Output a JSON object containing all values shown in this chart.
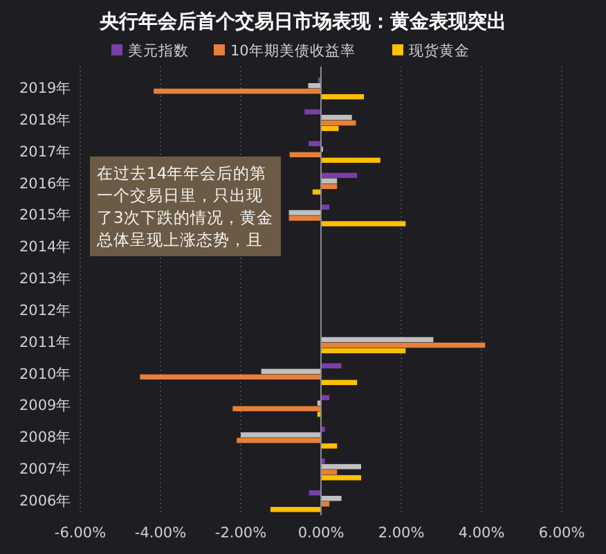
{
  "chart_data": {
    "type": "bar",
    "orientation": "horizontal",
    "title": "央行年会后首个交易日市场表现：黄金表现突出",
    "categories": [
      "2019年",
      "2018年",
      "2017年",
      "2016年",
      "2015年",
      "2014年",
      "2013年",
      "2012年",
      "2011年",
      "2010年",
      "2009年",
      "2008年",
      "2007年",
      "2006年"
    ],
    "series": [
      {
        "name": "美元指数",
        "color": "#7b3fa8",
        "values": [
          -0.07,
          -0.41,
          -0.31,
          0.9,
          0.21,
          null,
          null,
          null,
          null,
          0.51,
          0.21,
          0.1,
          0.1,
          -0.3
        ]
      },
      {
        "color": "#c0c0c0",
        "values": [
          -0.32,
          0.77,
          0.05,
          0.4,
          -0.8,
          null,
          null,
          null,
          2.8,
          -1.49,
          -0.09,
          -2.0,
          1.0,
          0.51
        ]
      },
      {
        "name": "10年期美债收益率",
        "color": "#e8803a",
        "values": [
          -4.17,
          0.87,
          -0.78,
          0.4,
          -0.8,
          null,
          null,
          null,
          4.09,
          -4.51,
          -2.2,
          -2.1,
          0.4,
          0.21
        ]
      },
      {
        "name": "现货黄金",
        "color": "#ffc000",
        "values": [
          1.07,
          0.44,
          1.48,
          -0.21,
          2.11,
          null,
          null,
          null,
          2.11,
          0.9,
          -0.09,
          0.4,
          1.0,
          -1.26
        ]
      }
    ],
    "xlim": [
      -6,
      6
    ],
    "xticks": [
      {
        "value": -6,
        "label": "-6.00%"
      },
      {
        "value": -4,
        "label": "-4.00%"
      },
      {
        "value": -2,
        "label": "-2.00%"
      },
      {
        "value": 0,
        "label": "0.00%"
      },
      {
        "value": 2,
        "label": "2.00%"
      },
      {
        "value": 4,
        "label": "4.00%"
      },
      {
        "value": 6,
        "label": "6.00%"
      }
    ],
    "grid": "x",
    "legend": "top",
    "annotations": [
      "在过去14年年会后的第一个交易日里，只出现了3次下跌的情况，黄金总体呈现上涨态势，且"
    ]
  }
}
